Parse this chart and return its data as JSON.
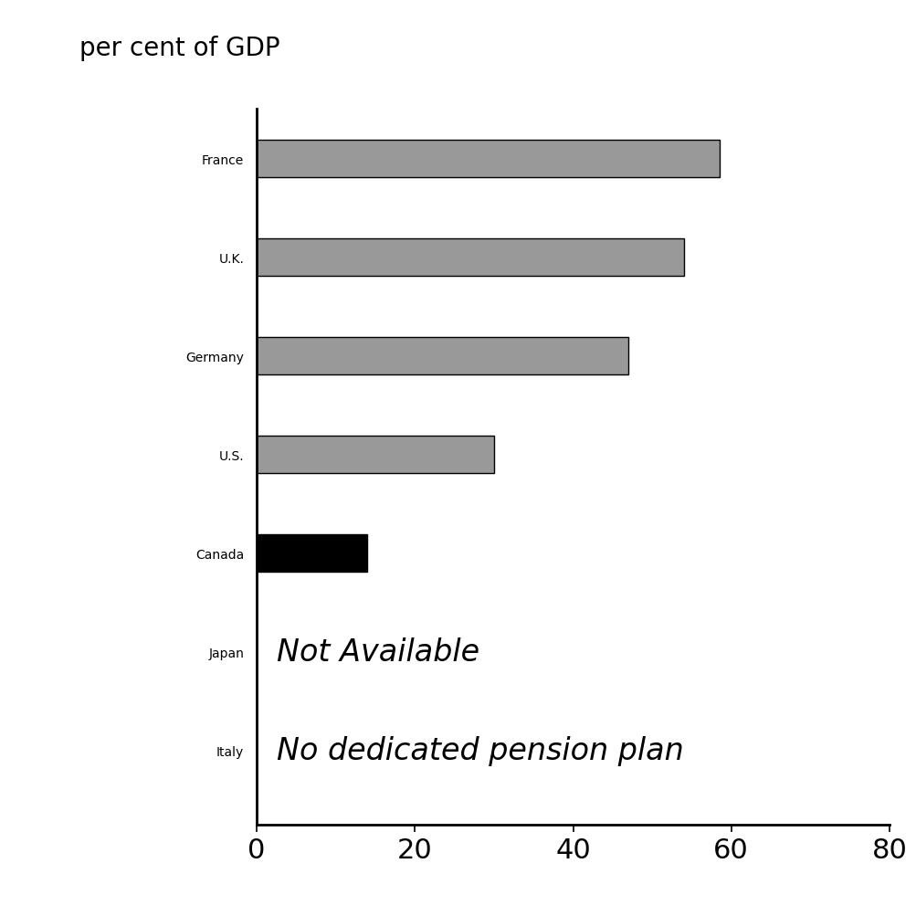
{
  "categories": [
    "France",
    "U.K.",
    "Germany",
    "U.S.",
    "Canada",
    "Japan",
    "Italy"
  ],
  "values": [
    58.5,
    54.0,
    47.0,
    30.0,
    14.0,
    null,
    null
  ],
  "bar_colors": [
    "#999999",
    "#999999",
    "#999999",
    "#999999",
    "#000000",
    null,
    null
  ],
  "bar_edgecolors": [
    "#000000",
    "#000000",
    "#000000",
    "#000000",
    "#000000",
    null,
    null
  ],
  "annotations": {
    "Japan": "Not Available",
    "Italy": "No dedicated pension plan"
  },
  "ylabel_top": "per cent of GDP",
  "xlim": [
    0,
    80
  ],
  "xticks": [
    0,
    20,
    40,
    60,
    80
  ],
  "background_color": "#ffffff",
  "bar_height": 0.38,
  "label_fontsize": 24,
  "tick_fontsize": 22,
  "annotation_fontsize": 24,
  "ylabel_fontsize": 20,
  "spine_linewidth": 2.0
}
